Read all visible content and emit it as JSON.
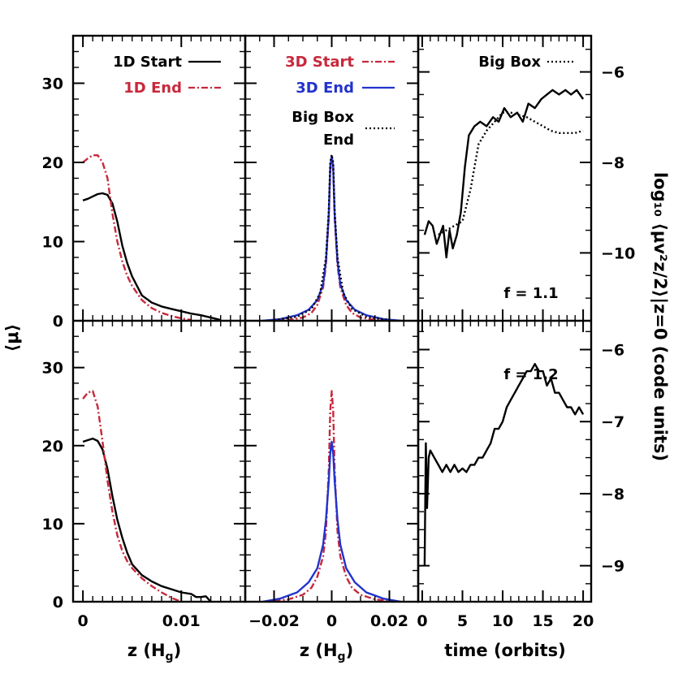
{
  "colors": {
    "black": "#000000",
    "red": "#c8283c",
    "blue": "#2233cc"
  },
  "labels": {
    "ylabel_left": "⟨μ⟩",
    "ylabel_right": "log₁₀ ⟨μv²z/2⟩|z=0 (code units)",
    "xlabel_a": "z (H",
    "xlabel_b": "z (H",
    "xlabel_c": "time (orbits)",
    "sub_g": "g",
    "paren_close": ")",
    "f_top": "f = 1.1",
    "f_bottom": "f = 1.2"
  },
  "legend": {
    "start_1d": "1D Start",
    "end_1d": "1D End",
    "start_3d": "3D Start",
    "end_3d": "3D End",
    "bigbox_end_1": "Big Box",
    "bigbox_end_2": "End",
    "bigbox": "Big Box"
  },
  "chart_data": [
    {
      "type": "line",
      "panel": "top-left",
      "xlabel": "",
      "ylabel": "⟨μ⟩",
      "xlim": [
        -0.001,
        0.0165
      ],
      "ylim": [
        0,
        36
      ],
      "series": [
        {
          "name": "1D Start",
          "color": "#000000",
          "style": "solid",
          "x": [
            0,
            0.0005,
            0.001,
            0.0015,
            0.002,
            0.0025,
            0.003,
            0.0035,
            0.004,
            0.0045,
            0.005,
            0.006,
            0.007,
            0.008,
            0.009,
            0.01,
            0.011,
            0.012,
            0.013,
            0.014
          ],
          "y": [
            15.2,
            15.4,
            15.7,
            16.0,
            16.1,
            15.9,
            14.8,
            12.5,
            9.5,
            7.3,
            5.6,
            3.2,
            2.3,
            1.8,
            1.5,
            1.2,
            0.9,
            0.7,
            0.4,
            0.1
          ]
        },
        {
          "name": "1D End",
          "color": "#c8283c",
          "style": "dashdot",
          "x": [
            0,
            0.0005,
            0.001,
            0.0015,
            0.002,
            0.0025,
            0.003,
            0.0035,
            0.004,
            0.0045,
            0.005,
            0.006,
            0.007,
            0.008,
            0.009,
            0.01,
            0.011
          ],
          "y": [
            20.0,
            20.5,
            20.9,
            20.9,
            20.0,
            18.0,
            13.5,
            10.0,
            7.5,
            5.7,
            4.4,
            2.6,
            1.6,
            1.0,
            0.6,
            0.3,
            0.1
          ]
        }
      ]
    },
    {
      "type": "line",
      "panel": "top-middle",
      "xlim": [
        -0.03,
        0.03
      ],
      "ylim": [
        0,
        36
      ],
      "series": [
        {
          "name": "3D Start",
          "color": "#c8283c",
          "style": "dashdot",
          "x": [
            -0.02,
            -0.015,
            -0.01,
            -0.007,
            -0.005,
            -0.003,
            -0.002,
            -0.001,
            -0.0005,
            0,
            0.0005,
            0.001,
            0.002,
            0.003,
            0.005,
            0.007,
            0.01,
            0.015,
            0.02
          ],
          "y": [
            0,
            0.1,
            0.4,
            1.0,
            2.0,
            4.2,
            7.0,
            13.0,
            19.0,
            20.8,
            19.0,
            13.0,
            7.0,
            4.2,
            2.0,
            1.0,
            0.4,
            0.1,
            0
          ]
        },
        {
          "name": "3D End",
          "color": "#2233cc",
          "style": "solid",
          "x": [
            -0.024,
            -0.018,
            -0.012,
            -0.008,
            -0.005,
            -0.003,
            -0.002,
            -0.001,
            -0.0005,
            0,
            0.0005,
            0.001,
            0.002,
            0.003,
            0.005,
            0.008,
            0.012,
            0.018,
            0.024
          ],
          "y": [
            0,
            0.2,
            0.7,
            1.4,
            2.6,
            4.6,
            7.5,
            13.5,
            19.5,
            20.8,
            19.5,
            13.5,
            7.5,
            4.6,
            2.6,
            1.4,
            0.7,
            0.2,
            0
          ]
        },
        {
          "name": "Big Box End",
          "color": "#000000",
          "style": "dotted",
          "x": [
            -0.02,
            -0.012,
            -0.007,
            -0.004,
            -0.002,
            -0.001,
            -0.0005,
            0,
            0.0005,
            0.001,
            0.002,
            0.004,
            0.007,
            0.012,
            0.02
          ],
          "y": [
            0.1,
            0.5,
            1.5,
            3.5,
            8.0,
            14.0,
            20.0,
            21.0,
            20.0,
            14.0,
            8.0,
            3.5,
            1.5,
            0.5,
            0.1
          ]
        }
      ]
    },
    {
      "type": "line",
      "panel": "top-right",
      "xlim": [
        -0.5,
        21
      ],
      "ylim": [
        -11.5,
        -5.2
      ],
      "right_ylabel": "log₁₀ ⟨μv²z/2⟩|z=0 (code units)",
      "series": [
        {
          "name": "f = 1.1",
          "color": "#000000",
          "style": "solid",
          "x": [
            0.3,
            0.8,
            1.3,
            1.8,
            2.2,
            2.6,
            3.0,
            3.4,
            3.8,
            4.3,
            4.8,
            5.3,
            5.8,
            6.5,
            7.2,
            8.0,
            8.8,
            9.5,
            10.2,
            11.0,
            11.8,
            12.5,
            13.2,
            14.0,
            14.8,
            15.5,
            16.2,
            17.0,
            17.8,
            18.5,
            19.2,
            20.0
          ],
          "y": [
            -9.6,
            -9.3,
            -9.4,
            -9.8,
            -9.6,
            -9.4,
            -10.1,
            -9.5,
            -9.9,
            -9.6,
            -9.1,
            -8.1,
            -7.4,
            -7.2,
            -7.1,
            -7.2,
            -7.0,
            -7.1,
            -6.8,
            -7.0,
            -6.9,
            -7.1,
            -6.7,
            -6.8,
            -6.6,
            -6.5,
            -6.4,
            -6.5,
            -6.4,
            -6.5,
            -6.4,
            -6.6
          ]
        },
        {
          "name": "Big Box",
          "color": "#000000",
          "style": "dotted",
          "x": [
            2.0,
            3.0,
            4.0,
            5.0,
            6.0,
            7.0,
            8.0,
            9.0,
            10.0,
            11.0,
            12.0,
            13.0,
            14.0,
            15.0,
            16.0,
            17.0,
            18.0,
            19.0,
            20.0
          ],
          "y": [
            -9.6,
            -9.5,
            -9.4,
            -9.3,
            -8.6,
            -7.6,
            -7.3,
            -7.1,
            -6.9,
            -6.9,
            -6.95,
            -7.0,
            -7.1,
            -7.2,
            -7.3,
            -7.35,
            -7.35,
            -7.35,
            -7.3
          ]
        }
      ]
    },
    {
      "type": "line",
      "panel": "bottom-left",
      "xlim": [
        -0.001,
        0.0165
      ],
      "ylim": [
        0,
        36
      ],
      "series": [
        {
          "name": "1D Start",
          "color": "#000000",
          "style": "solid",
          "x": [
            0,
            0.0005,
            0.001,
            0.0015,
            0.002,
            0.0025,
            0.003,
            0.0035,
            0.004,
            0.0045,
            0.005,
            0.006,
            0.007,
            0.008,
            0.009,
            0.01,
            0.011,
            0.0115,
            0.012,
            0.0125,
            0.013
          ],
          "y": [
            20.5,
            20.7,
            20.9,
            20.6,
            19.5,
            17.0,
            13.5,
            10.5,
            8.2,
            6.3,
            4.8,
            3.4,
            2.6,
            2.0,
            1.6,
            1.2,
            1.0,
            0.6,
            0.6,
            0.7,
            0
          ]
        },
        {
          "name": "1D End",
          "color": "#c8283c",
          "style": "dashdot",
          "x": [
            0,
            0.0005,
            0.001,
            0.0015,
            0.002,
            0.0025,
            0.003,
            0.0035,
            0.004,
            0.0045,
            0.005,
            0.006,
            0.007,
            0.008,
            0.009,
            0.01
          ],
          "y": [
            26.0,
            26.8,
            27.0,
            25.0,
            20.5,
            15.5,
            11.5,
            8.5,
            6.5,
            5.2,
            4.3,
            3.0,
            2.0,
            1.2,
            0.5,
            0
          ]
        }
      ]
    },
    {
      "type": "line",
      "panel": "bottom-middle",
      "xlim": [
        -0.03,
        0.03
      ],
      "ylim": [
        0,
        36
      ],
      "series": [
        {
          "name": "3D Start",
          "color": "#c8283c",
          "style": "dashdot",
          "x": [
            -0.02,
            -0.015,
            -0.01,
            -0.007,
            -0.005,
            -0.003,
            -0.002,
            -0.001,
            -0.0005,
            0,
            0.0005,
            0.001,
            0.002,
            0.003,
            0.005,
            0.007,
            0.01,
            0.015,
            0.02
          ],
          "y": [
            0.1,
            0.3,
            0.9,
            1.8,
            3.2,
            5.8,
            9.0,
            17.0,
            24.5,
            27.0,
            24.5,
            17.0,
            9.0,
            5.8,
            3.2,
            1.8,
            0.9,
            0.3,
            0.1
          ]
        },
        {
          "name": "3D End",
          "color": "#2233cc",
          "style": "solid",
          "x": [
            -0.024,
            -0.018,
            -0.012,
            -0.008,
            -0.005,
            -0.003,
            -0.002,
            -0.001,
            -0.0005,
            0,
            0.0005,
            0.001,
            0.002,
            0.003,
            0.005,
            0.008,
            0.012,
            0.018,
            0.024
          ],
          "y": [
            0,
            0.4,
            1.2,
            2.5,
            4.3,
            7.3,
            10.5,
            15.5,
            19.0,
            20.5,
            19.0,
            15.5,
            10.5,
            7.3,
            4.3,
            2.5,
            1.2,
            0.4,
            0
          ]
        }
      ]
    },
    {
      "type": "line",
      "panel": "bottom-right",
      "xlabel": "time (orbits)",
      "xlim": [
        -0.5,
        21
      ],
      "ylim": [
        -9.5,
        -5.6
      ],
      "series": [
        {
          "name": "f = 1.2",
          "color": "#000000",
          "style": "solid",
          "x": [
            0.3,
            0.45,
            0.6,
            0.8,
            1.0,
            1.5,
            2.0,
            2.5,
            3.0,
            3.5,
            4.0,
            4.5,
            5.0,
            5.5,
            6.0,
            6.5,
            7.0,
            7.5,
            8.0,
            8.5,
            9.0,
            9.5,
            10.0,
            10.5,
            11.0,
            11.5,
            12.0,
            12.5,
            13.0,
            13.5,
            14.0,
            14.5,
            15.0,
            15.5,
            16.0,
            16.5,
            17.0,
            17.5,
            18.0,
            18.5,
            19.0,
            19.5,
            20.0
          ],
          "y": [
            -9.0,
            -7.3,
            -8.2,
            -7.5,
            -7.4,
            -7.5,
            -7.6,
            -7.7,
            -7.6,
            -7.7,
            -7.6,
            -7.7,
            -7.65,
            -7.7,
            -7.6,
            -7.6,
            -7.5,
            -7.5,
            -7.4,
            -7.3,
            -7.1,
            -7.1,
            -7.0,
            -6.8,
            -6.7,
            -6.6,
            -6.5,
            -6.4,
            -6.3,
            -6.3,
            -6.2,
            -6.3,
            -6.3,
            -6.5,
            -6.4,
            -6.6,
            -6.6,
            -6.7,
            -6.8,
            -6.8,
            -6.9,
            -6.8,
            -6.9
          ]
        }
      ]
    }
  ],
  "ticks": {
    "mu_y": [
      "0",
      "10",
      "20",
      "30"
    ],
    "x1": [
      "0",
      "0.01"
    ],
    "x2": [
      "−0.02",
      "0",
      "0.02"
    ],
    "x3": [
      "0",
      "5",
      "10",
      "15",
      "20"
    ],
    "right_top": [
      "−10",
      "−8",
      "−6"
    ],
    "right_bottom": [
      "−9",
      "−8",
      "−7",
      "−6"
    ]
  }
}
